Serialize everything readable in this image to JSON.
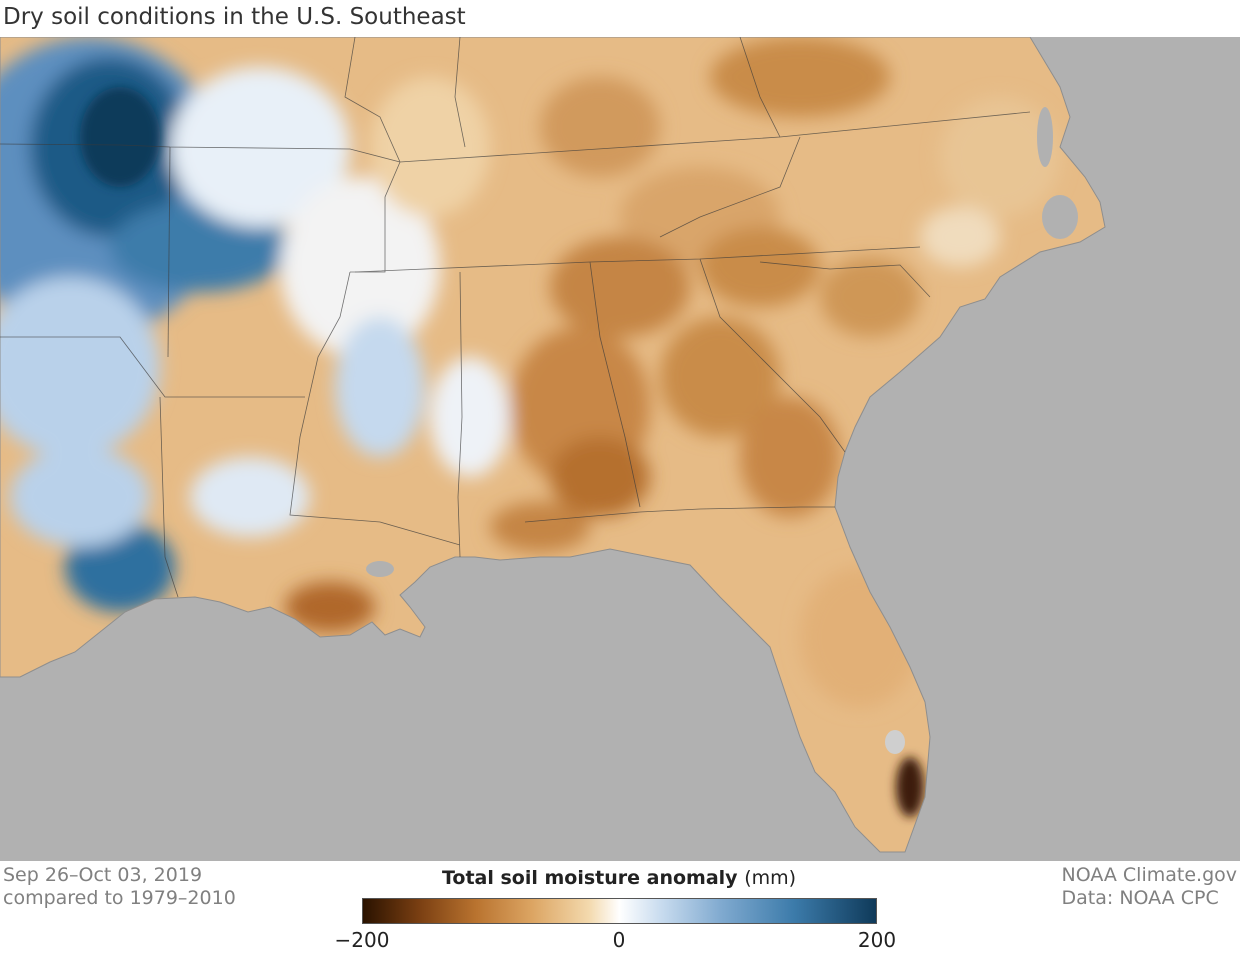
{
  "title": "Dry soil conditions in the U.S. Southeast",
  "period": {
    "dates": "Sep 26–Oct 03, 2019",
    "baseline": "compared to 1979–2010"
  },
  "credit": {
    "source": "NOAA Climate.gov",
    "data": "Data: NOAA CPC"
  },
  "legend": {
    "title": "Total soil moisture anomaly",
    "unit": "(mm)",
    "min_label": "−200",
    "mid_label": "0",
    "max_label": "200",
    "min_value": -200,
    "max_value": 200,
    "colors": [
      "#2a1200",
      "#7a3f12",
      "#b9732f",
      "#dca563",
      "#f3d9ad",
      "#ffffff",
      "#c9dcef",
      "#7fa9cf",
      "#3c7baa",
      "#0f3a5a"
    ]
  },
  "map_colors": {
    "ocean": "#b1b1b1",
    "dry": "#e2b077",
    "very_dry": "#b96f2c",
    "extreme_dry": "#3c1f07",
    "wet": "#b9d1ea",
    "very_wet": "#1d5a86",
    "border": "#333333"
  }
}
